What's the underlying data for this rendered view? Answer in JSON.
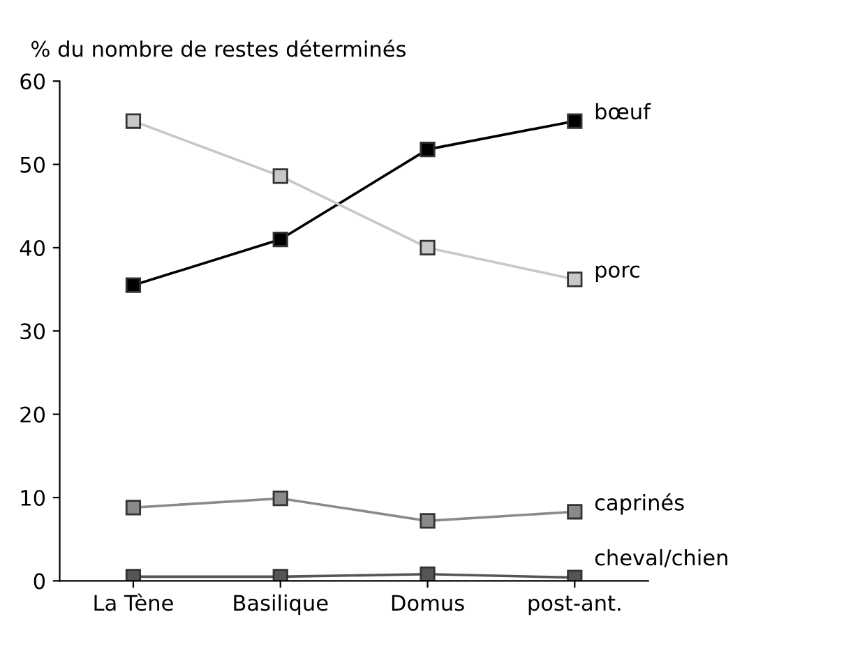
{
  "chart_data": {
    "type": "line",
    "ylabel": "% du nombre de restes déterminés",
    "categories": [
      "La Tène",
      "Basilique",
      "Domus",
      "post-ant."
    ],
    "series": [
      {
        "name": "bœuf",
        "color": "#000000",
        "values": [
          35.5,
          41,
          51.8,
          55.2
        ]
      },
      {
        "name": "porc",
        "color": "#c8c8c8",
        "values": [
          55.2,
          48.6,
          40,
          36.2
        ]
      },
      {
        "name": "caprinés",
        "color": "#8a8a8a",
        "values": [
          8.8,
          9.9,
          7.2,
          8.3
        ]
      },
      {
        "name": "cheval/chien",
        "color": "#555555",
        "values": [
          0.5,
          0.5,
          0.8,
          0.4
        ]
      }
    ],
    "ylim": [
      0,
      60
    ],
    "yticks": [
      0,
      10,
      20,
      30,
      40,
      50,
      60
    ],
    "grid": false,
    "legend": false,
    "marker": "square",
    "line_style": "solid"
  }
}
